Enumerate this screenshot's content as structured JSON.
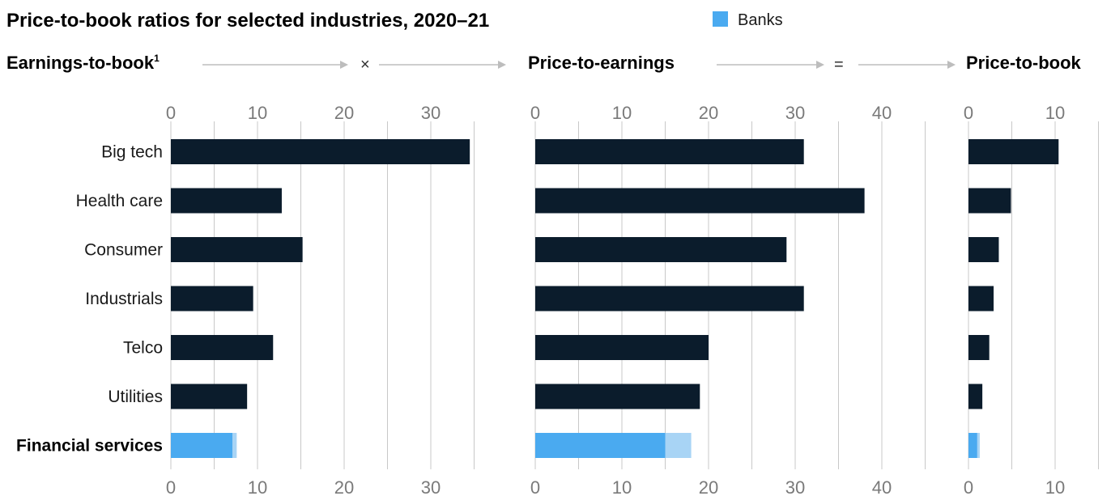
{
  "chart_data": {
    "type": "bar",
    "title": "Price-to-book ratios for selected industries, 2020–21",
    "legend": [
      {
        "label": "Banks",
        "color": "#4aaaf0"
      }
    ],
    "categories": [
      "Big tech",
      "Health care",
      "Consumer",
      "Industrials",
      "Telco",
      "Utilities",
      "Financial services"
    ],
    "operators": [
      "×",
      "="
    ],
    "colors": {
      "bar": "#0b1c2c",
      "banks": "#4aaaf0",
      "financial_services": "#a8d4f5"
    },
    "panels": [
      {
        "title": "Earnings-to-book",
        "title_sup": "1",
        "ticks": [
          "0",
          "10",
          "20",
          "30"
        ],
        "xlim": [
          0,
          35
        ],
        "values": [
          34.5,
          12.8,
          15.2,
          9.5,
          11.8,
          8.8,
          7.6
        ],
        "banks_values": [
          null,
          null,
          null,
          null,
          null,
          null,
          7.1
        ]
      },
      {
        "title": "Price-to-earnings",
        "ticks": [
          "0",
          "10",
          "20",
          "30",
          "40"
        ],
        "xlim": [
          0,
          45
        ],
        "values": [
          31,
          38,
          29,
          31,
          20,
          19,
          18
        ],
        "banks_values": [
          null,
          null,
          null,
          null,
          null,
          null,
          15
        ]
      },
      {
        "title": "Price-to-book",
        "ticks": [
          "0",
          "10"
        ],
        "xlim": [
          0,
          15
        ],
        "values": [
          10.4,
          4.9,
          3.5,
          2.9,
          2.4,
          1.6,
          1.3
        ],
        "banks_values": [
          null,
          null,
          null,
          null,
          null,
          null,
          1.0
        ]
      }
    ]
  }
}
